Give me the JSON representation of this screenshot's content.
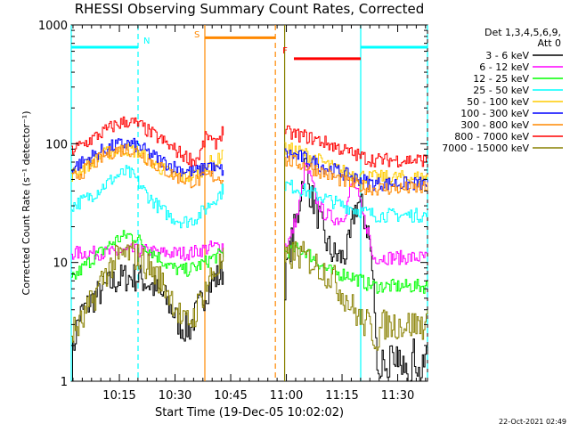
{
  "chart_data": {
    "type": "line",
    "title": "RHESSI Observing Summary Count Rates, Corrected",
    "xlabel": "Start Time (19-Dec-05 10:02:02)",
    "ylabel": "Corrected Count Rate (s⁻¹ detector⁻¹)",
    "yscale": "log",
    "ylim": [
      1,
      1000
    ],
    "xlim_minutes": [
      0,
      96
    ],
    "x_tick_labels": [
      "10:15",
      "10:30",
      "10:45",
      "11:00",
      "11:15",
      "11:30"
    ],
    "y_tick_labels": [
      "1",
      "10",
      "100",
      "1000"
    ],
    "y_tick_values": [
      1,
      10,
      100,
      1000
    ],
    "legend_header": [
      "Det 1,3,4,5,6,9,",
      "Att 0"
    ],
    "legend_position": "right",
    "footer": "22-Oct-2021 02:49",
    "gap_minutes": [
      37,
      57
    ],
    "series": [
      {
        "name": "3 - 6 keV",
        "color": "#000000",
        "x": [
          0,
          2,
          6,
          10,
          14,
          18,
          22,
          25,
          27,
          28.5,
          30,
          32,
          34,
          36,
          38,
          40,
          41,
          57.5,
          59,
          61,
          62,
          63,
          64,
          66,
          68,
          70,
          72,
          73,
          74,
          75,
          76,
          77,
          78,
          79,
          80,
          81,
          82,
          83,
          84,
          85,
          86,
          87,
          88,
          89,
          90,
          91,
          92,
          94,
          96
        ],
        "y": [
          1.3,
          3.5,
          5,
          6.5,
          7.5,
          7.5,
          6.2,
          5,
          4,
          3.2,
          2.8,
          2.8,
          4,
          5.5,
          7,
          7.8,
          8.5,
          6.5,
          14,
          25,
          45,
          70,
          40,
          27,
          16,
          12,
          11,
          11,
          12,
          15,
          25,
          32,
          30,
          22,
          18,
          8,
          2,
          1,
          1.8,
          1,
          1.8,
          1,
          1.8,
          1,
          1.8,
          1,
          1.8,
          1,
          1.8
        ]
      },
      {
        "name": "6 - 12 keV",
        "color": "#ff00ff",
        "x": [
          0,
          4,
          8,
          12,
          16,
          20,
          24,
          28,
          32,
          36,
          38,
          40,
          41,
          57.5,
          59,
          61,
          62,
          63,
          64,
          66,
          68,
          70,
          72,
          73,
          74,
          75,
          76,
          77,
          78,
          79,
          80,
          81,
          82,
          86,
          90,
          96
        ],
        "y": [
          12,
          12,
          12,
          12,
          12.5,
          12.5,
          12,
          12,
          12,
          13,
          13.5,
          13.8,
          14,
          14,
          16,
          26,
          40,
          68,
          55,
          33,
          26,
          24,
          23,
          24,
          28,
          40,
          48,
          38,
          28,
          22,
          18,
          11,
          11,
          11,
          11,
          11
        ]
      },
      {
        "name": "12 - 25 keV",
        "color": "#00ff00",
        "x": [
          0,
          3,
          6,
          9,
          12,
          15,
          17,
          19,
          22,
          25,
          27,
          30,
          33,
          36,
          38,
          40,
          41,
          57.5,
          60,
          63,
          65,
          68,
          70,
          72,
          74,
          76,
          78,
          80,
          82,
          86,
          90,
          96
        ],
        "y": [
          7,
          9,
          11,
          13,
          15.5,
          17,
          16.5,
          14.5,
          12,
          10,
          9,
          8.5,
          9,
          10,
          11,
          11.5,
          12,
          12,
          13,
          12.5,
          11,
          9,
          8.3,
          8,
          8,
          7.5,
          7,
          6.5,
          6.3,
          6.3,
          6.3,
          6.3
        ]
      },
      {
        "name": "25 - 50 keV",
        "color": "#00ffff",
        "x": [
          0,
          3,
          6,
          9,
          12,
          15,
          17,
          19,
          21,
          24,
          27,
          30,
          33,
          36,
          38,
          40,
          41,
          57.5,
          59,
          61,
          63,
          66,
          69,
          72,
          75,
          78,
          80,
          82,
          86,
          90,
          96
        ],
        "y": [
          30,
          33,
          38,
          45,
          53,
          58,
          52,
          42,
          35,
          28,
          24,
          22,
          23,
          28,
          33,
          38,
          42,
          45,
          44,
          42,
          40,
          37,
          34,
          31,
          29,
          27,
          26,
          25,
          25,
          25,
          25
        ]
      },
      {
        "name": "50 - 100 keV",
        "color": "#ffcc00",
        "x": [
          0,
          3,
          6,
          9,
          12,
          15,
          18,
          21,
          24,
          27,
          30,
          33,
          35,
          37,
          39,
          40.5,
          41,
          57.5,
          60,
          63,
          66,
          69,
          72,
          75,
          78,
          80,
          82,
          86,
          90,
          96
        ],
        "y": [
          55,
          62,
          72,
          82,
          88,
          90,
          85,
          72,
          62,
          55,
          52,
          54,
          60,
          70,
          68,
          82,
          95,
          90,
          88,
          82,
          74,
          66,
          60,
          56,
          54,
          52,
          52,
          52,
          52,
          52
        ]
      },
      {
        "name": "100 - 300 keV",
        "color": "#0000ff",
        "x": [
          0,
          3,
          6,
          9,
          12,
          15,
          18,
          21,
          24,
          27,
          30,
          33,
          35,
          37,
          38,
          39,
          41,
          57.5,
          60,
          63,
          66,
          69,
          72,
          75,
          78,
          80,
          82,
          86,
          90,
          96
        ],
        "y": [
          62,
          70,
          80,
          90,
          97,
          100,
          95,
          82,
          72,
          65,
          60,
          58,
          60,
          68,
          62,
          60,
          60,
          82,
          80,
          75,
          68,
          62,
          58,
          53,
          50,
          47,
          46,
          46,
          46,
          46
        ]
      },
      {
        "name": "300 - 800 keV",
        "color": "#ff8800",
        "x": [
          0,
          3,
          6,
          9,
          12,
          15,
          18,
          21,
          24,
          27,
          30,
          33,
          35,
          37,
          39,
          41,
          57.5,
          60,
          63,
          66,
          69,
          72,
          75,
          78,
          80,
          82,
          86,
          90,
          96
        ],
        "y": [
          50,
          58,
          68,
          80,
          88,
          90,
          85,
          72,
          62,
          55,
          50,
          48,
          50,
          54,
          52,
          52,
          72,
          70,
          65,
          60,
          55,
          50,
          46,
          44,
          42,
          42,
          42,
          42,
          42
        ]
      },
      {
        "name": "800 - 7000 keV",
        "color": "#ff0000",
        "x": [
          0,
          3,
          6,
          9,
          12,
          15,
          18,
          21,
          24,
          27,
          30,
          33,
          34,
          35,
          36,
          37,
          38,
          39,
          40,
          41,
          57.5,
          60,
          63,
          66,
          69,
          72,
          75,
          78,
          80,
          82,
          86,
          90,
          96
        ],
        "y": [
          88,
          98,
          112,
          128,
          145,
          155,
          145,
          125,
          108,
          92,
          80,
          72,
          76,
          88,
          110,
          118,
          96,
          104,
          118,
          130,
          125,
          120,
          115,
          108,
          100,
          92,
          84,
          78,
          74,
          73,
          73,
          73,
          73
        ]
      },
      {
        "name": "7000 - 15000 keV",
        "color": "#888000",
        "x": [
          0,
          3,
          6,
          9,
          12,
          15,
          18,
          21,
          24,
          27,
          30,
          33,
          36,
          38,
          40,
          41,
          57.5,
          60,
          63,
          65,
          67,
          69,
          71,
          72,
          74,
          76,
          78,
          80,
          82,
          84,
          88,
          92,
          96
        ],
        "y": [
          2.5,
          3.2,
          5,
          8,
          10.5,
          12,
          11,
          9,
          7,
          5,
          3,
          3.5,
          6,
          8,
          9.5,
          10,
          10,
          12,
          11,
          10,
          9,
          8,
          7,
          6,
          5,
          4,
          3.2,
          3,
          2.2,
          3,
          3,
          3,
          3
        ]
      }
    ],
    "attenuator_state_bars": [
      {
        "label": "",
        "color": "#00ffff",
        "ypos_value": 650,
        "x": [
          0,
          18
        ]
      },
      {
        "label": "",
        "color": "#00ffff",
        "ypos_value": 650,
        "x": [
          78,
          96
        ]
      },
      {
        "label": "",
        "color": "#ff8800",
        "ypos_value": 780,
        "x": [
          36,
          55
        ]
      },
      {
        "label": "",
        "color": "#ff0000",
        "ypos_value": 520,
        "x": [
          60,
          78
        ]
      }
    ],
    "event_markers": [
      {
        "label": "N",
        "color": "#00ffff",
        "x": 18
      },
      {
        "label": "S",
        "color": "#ff8800",
        "x": 36
      },
      {
        "label": "F",
        "color": "#ff0000",
        "x": 55
      }
    ],
    "period_lines": [
      {
        "color": "#00ffff",
        "style": "solid",
        "x": 0
      },
      {
        "color": "#00ffff",
        "style": "dashed",
        "x": 18
      },
      {
        "color": "#ff8800",
        "style": "solid",
        "x": 36
      },
      {
        "color": "#ff8800",
        "style": "dashed",
        "x": 55
      },
      {
        "color": "#888000",
        "style": "solid",
        "x": 57.5
      },
      {
        "color": "#00ffff",
        "style": "solid",
        "x": 78
      },
      {
        "color": "#00ffff",
        "style": "dashed",
        "x": 96
      }
    ]
  }
}
